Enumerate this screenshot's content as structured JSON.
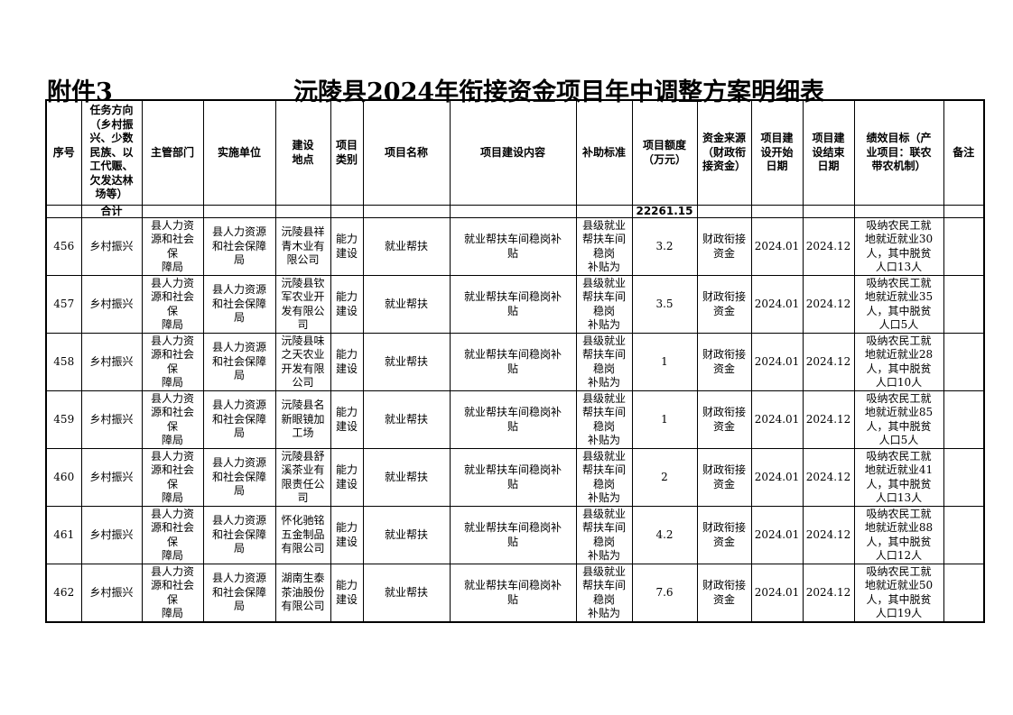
{
  "attachment_label": "附件3",
  "title": "沅陵县2024年衔接资金项目年中调整方案明细表",
  "columns": [
    "序号",
    "任务方向\n（乡村振\n兴、少数\n民族、以\n工代赈、\n欠发达林\n场等）",
    "主管部门",
    "实施单位",
    "建设\n地点",
    "项目\n类别",
    "项目名称",
    "项目建设内容",
    "补助标准",
    "项目额度\n（万元）",
    "资金来源\n（财政衔\n接资金）",
    "项目建\n设开始\n日期",
    "项目建\n设结束\n日期",
    "绩效目标（产\n业项目：联农\n带农机制）",
    "备注"
  ],
  "total_row": {
    "label": "合计",
    "amount": "22261.15"
  },
  "rows": [
    [
      "456",
      "乡村振兴",
      "县人力资\n源和社会\n保\n障局",
      "县人力资源\n和社会保障\n局",
      "沅陵县祥\n青木业有\n限公司",
      "能力\n建设",
      "就业帮扶",
      "就业帮扶车间稳岗补\n贴",
      "县级就业\n帮扶车间\n稳岗\n补贴为",
      "3.2",
      "财政衔接\n资金",
      "2024.01",
      "2024.12",
      "吸纳农民工就\n地就近就业30\n人，其中脱贫\n人口13人",
      ""
    ],
    [
      "457",
      "乡村振兴",
      "县人力资\n源和社会\n保\n障局",
      "县人力资源\n和社会保障\n局",
      "沅陵县钦\n军农业开\n发有限公\n司",
      "能力\n建设",
      "就业帮扶",
      "就业帮扶车间稳岗补\n贴",
      "县级就业\n帮扶车间\n稳岗\n补贴为",
      "3.5",
      "财政衔接\n资金",
      "2024.01",
      "2024.12",
      "吸纳农民工就\n地就近就业35\n人，其中脱贫\n人口5人",
      ""
    ],
    [
      "458",
      "乡村振兴",
      "县人力资\n源和社会\n保\n障局",
      "县人力资源\n和社会保障\n局",
      "沅陵县味\n之天农业\n开发有限\n公司",
      "能力\n建设",
      "就业帮扶",
      "就业帮扶车间稳岗补\n贴",
      "县级就业\n帮扶车间\n稳岗\n补贴为",
      "1",
      "财政衔接\n资金",
      "2024.01",
      "2024.12",
      "吸纳农民工就\n地就近就业28\n人，其中脱贫\n人口10人",
      ""
    ],
    [
      "459",
      "乡村振兴",
      "县人力资\n源和社会\n保\n障局",
      "县人力资源\n和社会保障\n局",
      "沅陵县名\n新眼镜加\n工场",
      "能力\n建设",
      "就业帮扶",
      "就业帮扶车间稳岗补\n贴",
      "县级就业\n帮扶车间\n稳岗\n补贴为",
      "1",
      "财政衔接\n资金",
      "2024.01",
      "2024.12",
      "吸纳农民工就\n地就近就业85\n人，其中脱贫\n人口5人",
      ""
    ],
    [
      "460",
      "乡村振兴",
      "县人力资\n源和社会\n保\n障局",
      "县人力资源\n和社会保障\n局",
      "沅陵县舒\n溪茶业有\n限责任公\n司",
      "能力\n建设",
      "就业帮扶",
      "就业帮扶车间稳岗补\n贴",
      "县级就业\n帮扶车间\n稳岗\n补贴为",
      "2",
      "财政衔接\n资金",
      "2024.01",
      "2024.12",
      "吸纳农民工就\n地就近就业41\n人，其中脱贫\n人口13人",
      ""
    ],
    [
      "461",
      "乡村振兴",
      "县人力资\n源和社会\n保\n障局",
      "县人力资源\n和社会保障\n局",
      "怀化驰铭\n五金制品\n有限公司",
      "能力\n建设",
      "就业帮扶",
      "就业帮扶车间稳岗补\n贴",
      "县级就业\n帮扶车间\n稳岗\n补贴为",
      "4.2",
      "财政衔接\n资金",
      "2024.01",
      "2024.12",
      "吸纳农民工就\n地就近就业88\n人，其中脱贫\n人口12人",
      ""
    ],
    [
      "462",
      "乡村振兴",
      "县人力资\n源和社会\n保\n障局",
      "县人力资源\n和社会保障\n局",
      "湖南生泰\n茶油股份\n有限公司",
      "能力\n建设",
      "就业帮扶",
      "就业帮扶车间稳岗补\n贴",
      "县级就业\n帮扶车间\n稳岗\n补贴为",
      "7.6",
      "财政衔接\n资金",
      "2024.01",
      "2024.12",
      "吸纳农民工就\n地就近就业50\n人，其中脱贫\n人口19人",
      ""
    ]
  ]
}
